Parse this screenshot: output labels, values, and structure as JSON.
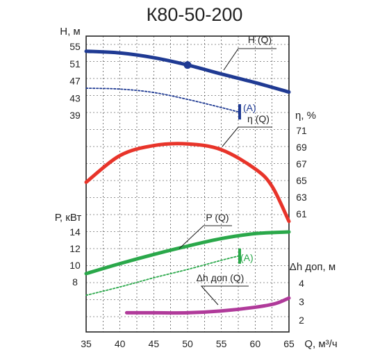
{
  "chart_data": {
    "type": "line",
    "title": "К80-50-200",
    "x_axis": {
      "label": "Q, м³/ч",
      "range": [
        35,
        65
      ],
      "ticks": [
        "35",
        "40",
        "45",
        "50",
        "55",
        "60",
        "65"
      ]
    },
    "axes": {
      "H": {
        "label": "Н, м",
        "range": [
          37,
          55
        ],
        "ticks": [
          "55",
          "51",
          "47",
          "43",
          "39"
        ],
        "side": "left"
      },
      "eta": {
        "label": "η, %",
        "range": [
          60,
          72
        ],
        "ticks": [
          "71",
          "69",
          "67",
          "65",
          "63",
          "61"
        ],
        "side": "right"
      },
      "P": {
        "label": "Р, кВт",
        "range": [
          6,
          16
        ],
        "ticks": [
          "14",
          "12",
          "10",
          "8"
        ],
        "side": "left"
      },
      "NPSH": {
        "label": "Δh доп, м",
        "range": [
          1.5,
          5
        ],
        "ticks": [
          "4",
          "3",
          "2"
        ],
        "side": "right"
      }
    },
    "series": [
      {
        "name": "H (Q)",
        "axis": "H",
        "style": "solid",
        "color": "#1f3a93",
        "x": [
          35,
          40,
          45,
          50,
          55,
          60,
          65
        ],
        "y": [
          53.9,
          53.5,
          52.4,
          50.7,
          48.6,
          46.6,
          44.4
        ]
      },
      {
        "name": "",
        "axis": "H",
        "style": "dotted",
        "color": "#1f3a93",
        "x": [
          35,
          40,
          45,
          50,
          55,
          57.5
        ],
        "y": [
          45.3,
          45.1,
          44.3,
          42.7,
          40.8,
          39.8
        ]
      },
      {
        "name": "η (Q)",
        "axis": "eta",
        "style": "solid",
        "color": "#e8342a",
        "x": [
          35,
          40,
          45,
          50,
          55,
          60,
          62.5,
          65
        ],
        "y": [
          64.8,
          68.0,
          69.2,
          69.4,
          68.7,
          66.4,
          64.3,
          60.1
        ]
      },
      {
        "name": "P (Q)",
        "axis": "P",
        "style": "solid",
        "color": "#2aa84a",
        "x": [
          35,
          40,
          45,
          50,
          55,
          60,
          65
        ],
        "y": [
          9.0,
          10.2,
          11.3,
          12.3,
          13.2,
          13.8,
          14.0
        ]
      },
      {
        "name": "",
        "axis": "P",
        "style": "dotted",
        "color": "#2aa84a",
        "x": [
          35,
          40,
          45,
          50,
          55,
          57.5
        ],
        "y": [
          6.4,
          7.4,
          8.5,
          9.5,
          10.6,
          11.1
        ]
      },
      {
        "name": "Δh доп (Q)",
        "axis": "NPSH",
        "style": "solid",
        "color": "#b03a9a",
        "x": [
          41,
          45,
          50,
          55,
          60,
          63,
          65
        ],
        "y": [
          2.4,
          2.4,
          2.4,
          2.5,
          2.7,
          2.9,
          3.2
        ]
      }
    ],
    "operating_point": {
      "x": 50,
      "y": 50.7,
      "axis": "H"
    },
    "annotations": [
      "(A)",
      "(A)"
    ],
    "grid": true,
    "colors": {
      "H": "#1f3a93",
      "eta": "#e8342a",
      "P": "#2aa84a",
      "NPSH": "#b03a9a",
      "frame": "#222222"
    }
  }
}
